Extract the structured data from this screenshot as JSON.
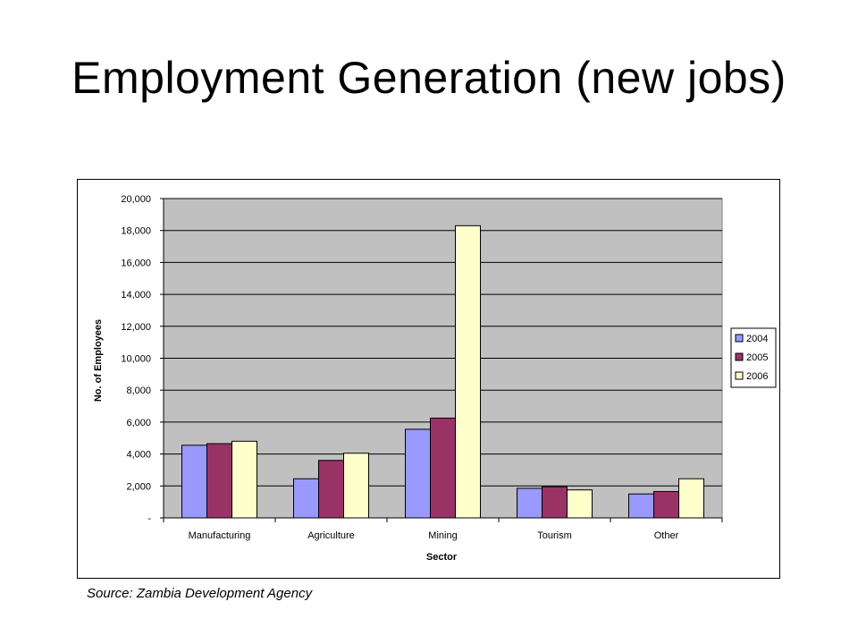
{
  "title": "Employment Generation (new jobs)",
  "source": "Source: Zambia Development Agency",
  "colors": {
    "plot_bg": "#c0c0c0",
    "gridline": "#000000"
  },
  "chart_data": {
    "type": "bar",
    "xlabel": "Sector",
    "ylabel": "No. of Employees",
    "categories": [
      "Manufacturing",
      "Agriculture",
      "Mining",
      "Tourism",
      "Other"
    ],
    "ylim": [
      0,
      20000
    ],
    "yticks": [
      0,
      2000,
      4000,
      6000,
      8000,
      10000,
      12000,
      14000,
      16000,
      18000,
      20000
    ],
    "ytick_labels": [
      "-",
      "2,000",
      "4,000",
      "6,000",
      "8,000",
      "10,000",
      "12,000",
      "14,000",
      "16,000",
      "18,000",
      "20,000"
    ],
    "grid": true,
    "legend_position": "right",
    "series": [
      {
        "name": "2004",
        "color": "#9999ff",
        "values": [
          4550,
          2450,
          5550,
          1850,
          1500
        ]
      },
      {
        "name": "2005",
        "color": "#993366",
        "values": [
          4650,
          3600,
          6250,
          1950,
          1650
        ]
      },
      {
        "name": "2006",
        "color": "#ffffcc",
        "values": [
          4800,
          4050,
          18300,
          1750,
          2450
        ]
      }
    ]
  }
}
